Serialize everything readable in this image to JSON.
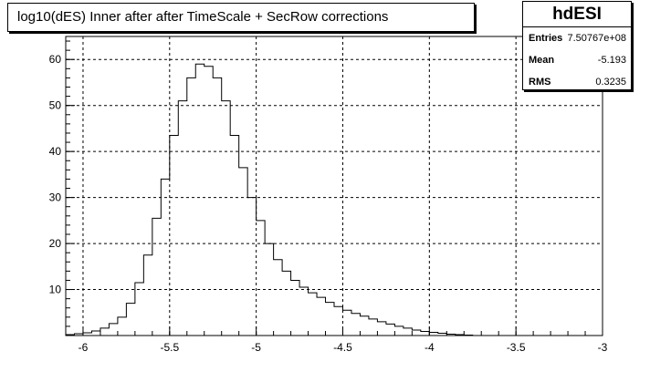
{
  "chart_data": {
    "type": "bar",
    "title": "log10(dES) Inner after after TimeScale + SecRow corrections",
    "histogram_name": "hdESI",
    "stats": [
      {
        "label": "Entries",
        "value": "7.50767e+08"
      },
      {
        "label": "Mean",
        "value": "-5.193"
      },
      {
        "label": "RMS",
        "value": "0.3235"
      }
    ],
    "xlim": [
      -6.1,
      -3.0
    ],
    "ylim": [
      0,
      65
    ],
    "grid": true,
    "line_color": "#000000",
    "x_ticks": [
      {
        "value": -6.0,
        "label": "-6"
      },
      {
        "value": -5.5,
        "label": "-5.5"
      },
      {
        "value": -5.0,
        "label": "-5"
      },
      {
        "value": -4.5,
        "label": "-4.5"
      },
      {
        "value": -4.0,
        "label": "-4"
      },
      {
        "value": -3.5,
        "label": "-3.5"
      },
      {
        "value": -3.0,
        "label": "-3"
      }
    ],
    "y_ticks": [
      {
        "value": 10,
        "label": "10"
      },
      {
        "value": 20,
        "label": "20"
      },
      {
        "value": 30,
        "label": "30"
      },
      {
        "value": 40,
        "label": "40"
      },
      {
        "value": 50,
        "label": "50"
      },
      {
        "value": 60,
        "label": "60"
      }
    ],
    "bin_edges": [
      -6.1,
      -6.05,
      -6.0,
      -5.95,
      -5.9,
      -5.85,
      -5.8,
      -5.75,
      -5.7,
      -5.65,
      -5.6,
      -5.55,
      -5.5,
      -5.45,
      -5.4,
      -5.35,
      -5.3,
      -5.25,
      -5.2,
      -5.15,
      -5.1,
      -5.05,
      -5.0,
      -4.95,
      -4.9,
      -4.85,
      -4.8,
      -4.75,
      -4.7,
      -4.65,
      -4.6,
      -4.55,
      -4.5,
      -4.45,
      -4.4,
      -4.35,
      -4.3,
      -4.25,
      -4.2,
      -4.15,
      -4.1,
      -4.05,
      -4.0,
      -3.95,
      -3.9,
      -3.85,
      -3.8,
      -3.75
    ],
    "values": [
      0.2,
      0.4,
      0.6,
      1.0,
      1.6,
      2.6,
      4.0,
      7.0,
      11.5,
      17.5,
      25.5,
      34.0,
      43.5,
      51.0,
      56.0,
      59.0,
      58.5,
      56.0,
      51.0,
      43.5,
      36.5,
      30.0,
      25.0,
      20.0,
      16.5,
      14.0,
      12.0,
      10.5,
      9.3,
      8.3,
      7.2,
      6.3,
      5.5,
      4.8,
      4.2,
      3.6,
      3.0,
      2.5,
      2.0,
      1.6,
      1.2,
      0.9,
      0.7,
      0.5,
      0.3,
      0.2,
      0.1
    ]
  }
}
